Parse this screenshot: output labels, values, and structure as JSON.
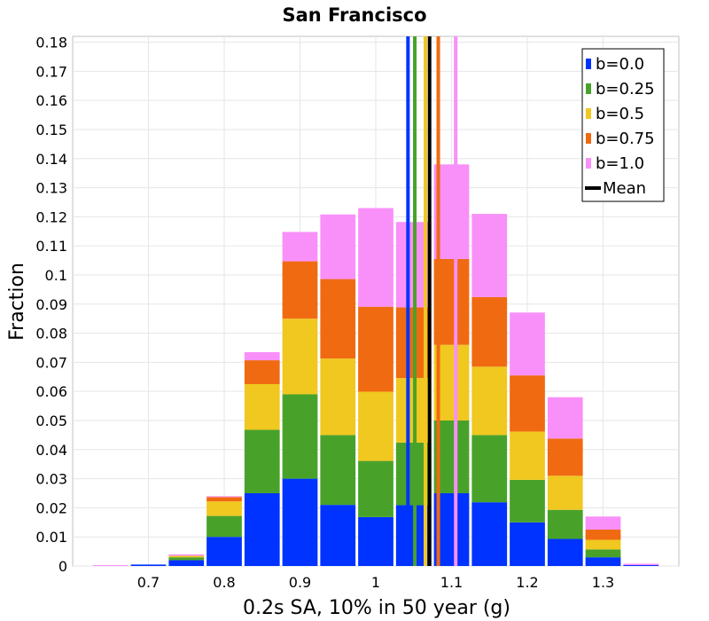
{
  "chart_data": {
    "type": "bar",
    "stacked": true,
    "title": "San Francisco",
    "xlabel": "0.2s SA, 10% in 50 year (g)",
    "ylabel": "Fraction",
    "xlim": [
      0.6,
      1.4
    ],
    "ylim": [
      0,
      0.182
    ],
    "grid": true,
    "legend_position": "top-right",
    "xticks": [
      "0.7",
      "0.8",
      "0.9",
      "1",
      "1.1",
      "1.2",
      "1.3"
    ],
    "yticks": [
      "0",
      "0.01",
      "0.02",
      "0.03",
      "0.04",
      "0.05",
      "0.06",
      "0.07",
      "0.08",
      "0.09",
      "0.1",
      "0.11",
      "0.12",
      "0.13",
      "0.14",
      "0.15",
      "0.16",
      "0.17",
      "0.18"
    ],
    "x": [
      0.65,
      0.7,
      0.75,
      0.8,
      0.85,
      0.9,
      0.95,
      1.0,
      1.05,
      1.1,
      1.15,
      1.2,
      1.25,
      1.3,
      1.35,
      1.4
    ],
    "series": [
      {
        "name": "b=0.0",
        "color": "#0033ff",
        "values": [
          0,
          0.0005,
          0.002,
          0.01,
          0.025,
          0.03,
          0.021,
          0.0168,
          0.0209,
          0.025,
          0.0219,
          0.015,
          0.0093,
          0.003,
          0.0003,
          0
        ]
      },
      {
        "name": "b=0.25",
        "color": "#48a22a",
        "values": [
          0,
          0,
          0.001,
          0.0072,
          0.0218,
          0.029,
          0.024,
          0.0193,
          0.0215,
          0.025,
          0.0231,
          0.0146,
          0.01,
          0.0027,
          0,
          0
        ]
      },
      {
        "name": "b=0.5",
        "color": "#f0c820",
        "values": [
          0,
          0,
          0.0005,
          0.005,
          0.0157,
          0.026,
          0.0263,
          0.0238,
          0.0222,
          0.026,
          0.0235,
          0.0166,
          0.0117,
          0.0033,
          0,
          0
        ]
      },
      {
        "name": "b=0.75",
        "color": "#f06a12",
        "values": [
          0,
          0,
          0,
          0.0015,
          0.0082,
          0.0197,
          0.0273,
          0.0292,
          0.0243,
          0.0295,
          0.0239,
          0.0193,
          0.0128,
          0.0035,
          0,
          0
        ]
      },
      {
        "name": "b=1.0",
        "color": "#f990f9",
        "values": [
          0.0003,
          0,
          0.0005,
          0.0003,
          0.0028,
          0.0101,
          0.0222,
          0.0339,
          0.0293,
          0.0325,
          0.0286,
          0.0216,
          0.0142,
          0.0045,
          0.0005,
          0
        ]
      }
    ],
    "vertical_lines": [
      {
        "name": "b=0.0",
        "color": "#0033ff",
        "x": 1.0425
      },
      {
        "name": "b=0.25",
        "color": "#48a22a",
        "x": 1.0515
      },
      {
        "name": "b=0.5",
        "color": "#f0c820",
        "x": 1.0655
      },
      {
        "name": "b=0.75",
        "color": "#f06a12",
        "x": 1.0825
      },
      {
        "name": "b=1.0",
        "color": "#f990f9",
        "x": 1.1055
      },
      {
        "name": "Mean",
        "color": "#000000",
        "x": 1.071
      }
    ],
    "legend": [
      {
        "label": "b=0.0",
        "color": "#0033ff",
        "kind": "box"
      },
      {
        "label": "b=0.25",
        "color": "#48a22a",
        "kind": "box"
      },
      {
        "label": "b=0.5",
        "color": "#f0c820",
        "kind": "box"
      },
      {
        "label": "b=0.75",
        "color": "#f06a12",
        "kind": "box"
      },
      {
        "label": "b=1.0",
        "color": "#f990f9",
        "kind": "box"
      },
      {
        "label": "Mean",
        "color": "#000000",
        "kind": "line"
      }
    ]
  }
}
